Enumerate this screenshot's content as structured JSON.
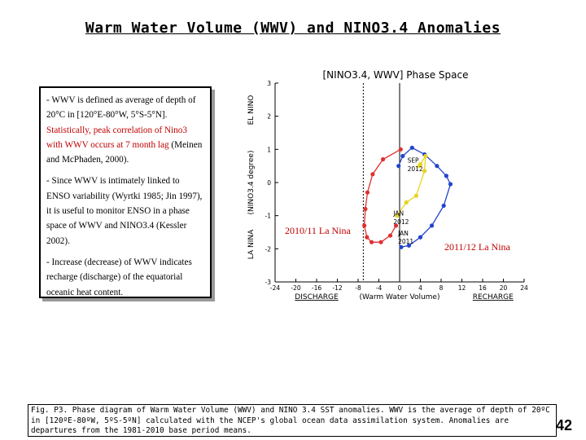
{
  "slide": {
    "title": "Warm Water Volume (WWV) and NINO3.4 Anomalies",
    "page_number": "42"
  },
  "notes": {
    "p1_part1": "- WWV is defined as average of depth of 20°C in [120°E-80°W, 5°S-5°N].",
    "p1_red": "Statistically, peak correlation of Nino3 with WWV occurs at 7 month lag",
    "p1_part2": "(Meinen and McPhaden, 2000).",
    "p2": "- Since WWV is intimately linked to ENSO variability (Wyrtki 1985; Jin 1997), it is useful to monitor ENSO in a phase space of WWV and NINO3.4 (Kessler 2002).",
    "p3": "- Increase (decrease) of WWV indicates recharge (discharge) of the equatorial oceanic heat content."
  },
  "annotations": {
    "la_nina_2010": "2010/11 La Nina",
    "la_nina_2011": "2011/12 La Nina"
  },
  "caption": "Fig. P3. Phase diagram of Warm Water Volume (WWV) and NINO 3.4 SST anomalies. WWV is the average of depth of 20ºC in [120ºE-80ºW, 5ºS-5ºN] calculated with the NCEP's global ocean data assimilation system. Anomalies are departures from the 1981-2010 base period means.",
  "chart_data": {
    "type": "scatter",
    "title": "[NINO3.4, WWV] Phase Space",
    "xlabel": "(Warm Water Volume)",
    "xlabel_left": "DISCHARGE",
    "xlabel_right": "RECHARGE",
    "ylabel": "(NINO3.4 degree)",
    "ylabel_top": "EL NINO",
    "ylabel_bottom": "LA NINA",
    "xlim": [
      -24,
      24
    ],
    "ylim": [
      -3,
      3
    ],
    "x_ticks": [
      "-24",
      "-20",
      "-16",
      "-12",
      "-8",
      "-4",
      "0",
      "4",
      "8",
      "12",
      "16",
      "20",
      "24"
    ],
    "y_ticks": [
      "3",
      "2",
      "1",
      "0",
      "-1",
      "-2",
      "-3"
    ],
    "reference_lines": {
      "vertical_solid_at": 0,
      "vertical_dashed_at": -7
    },
    "point_labels": [
      {
        "text": "SEP",
        "x": 1.5,
        "y": 0.6,
        "color": "#000000"
      },
      {
        "text": "2012",
        "x": 1.5,
        "y": 0.35,
        "color": "#000000"
      },
      {
        "text": "JAN",
        "x": -1.2,
        "y": -1.0,
        "color": "#000000"
      },
      {
        "text": "2012",
        "x": -1.2,
        "y": -1.25,
        "color": "#000000"
      },
      {
        "text": "JAN",
        "x": -0.3,
        "y": -1.6,
        "color": "#000000"
      },
      {
        "text": "2011",
        "x": -0.3,
        "y": -1.85,
        "color": "#000000"
      }
    ],
    "series": [
      {
        "color": "#e03030",
        "x": [
          0.2,
          -3.2,
          -5.2,
          -6.2,
          -6.6,
          -6.8,
          -6.3,
          -5.4,
          -3.6,
          -1.8,
          -0.7
        ],
        "y": [
          1.0,
          0.7,
          0.25,
          -0.3,
          -0.8,
          -1.3,
          -1.65,
          -1.8,
          -1.8,
          -1.6,
          -1.3
        ]
      },
      {
        "color": "#2244cc",
        "x": [
          0.3,
          1.8,
          4.0,
          6.2,
          8.5,
          9.8,
          9.0,
          7.2,
          4.8,
          2.4,
          0.6,
          -0.2
        ],
        "y": [
          -1.95,
          -1.9,
          -1.65,
          -1.3,
          -0.7,
          -0.05,
          0.2,
          0.5,
          0.85,
          1.05,
          0.8,
          0.5
        ]
      },
      {
        "color": "#e8d420",
        "x": [
          -0.5,
          1.3,
          3.2,
          4.8,
          5.0,
          4.0,
          3.8
        ],
        "y": [
          -1.0,
          -0.6,
          -0.4,
          0.35,
          0.8,
          0.55,
          0.5
        ]
      }
    ]
  }
}
